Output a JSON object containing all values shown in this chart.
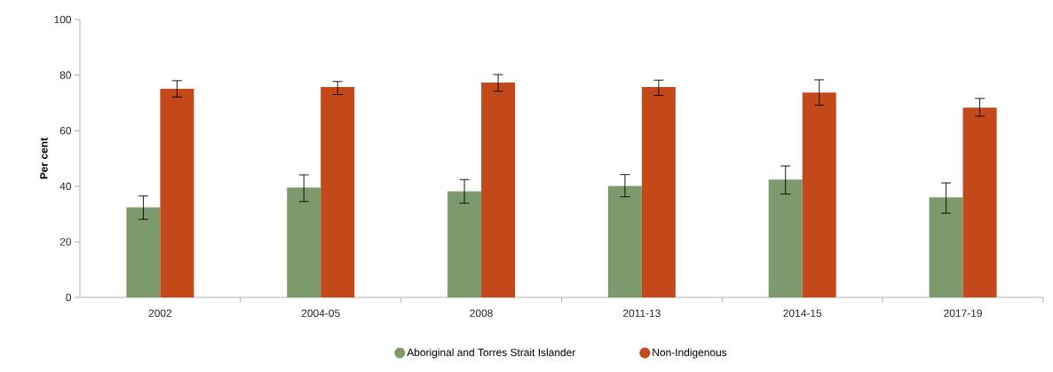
{
  "chart_data": {
    "type": "bar",
    "ylabel": "Per cent",
    "categories": [
      "2002",
      "2004-05",
      "2008",
      "2011-13",
      "2014-15",
      "2017-19"
    ],
    "series": [
      {
        "name": "Aboriginal and Torres Strait Islander",
        "color": "#7d9a6c",
        "values": [
          32.4,
          39.5,
          38.2,
          40.1,
          42.4,
          36.0
        ],
        "errors": [
          [
            28.1,
            36.5
          ],
          [
            34.5,
            44.1
          ],
          [
            33.9,
            42.4
          ],
          [
            36.2,
            44.2
          ],
          [
            37.2,
            47.3
          ],
          [
            30.3,
            41.2
          ]
        ]
      },
      {
        "name": "Non-Indigenous",
        "color": "#c4491a",
        "values": [
          75.1,
          75.7,
          77.3,
          75.7,
          73.7,
          68.3
        ],
        "errors": [
          [
            72.1,
            78.0
          ],
          [
            73.0,
            77.7
          ],
          [
            74.2,
            80.2
          ],
          [
            72.7,
            78.2
          ],
          [
            69.2,
            78.3
          ],
          [
            65.2,
            71.6
          ]
        ]
      }
    ],
    "ylim": [
      0,
      100
    ],
    "yticks": [
      0,
      20,
      40,
      60,
      80,
      100
    ],
    "legend": "bottom"
  }
}
